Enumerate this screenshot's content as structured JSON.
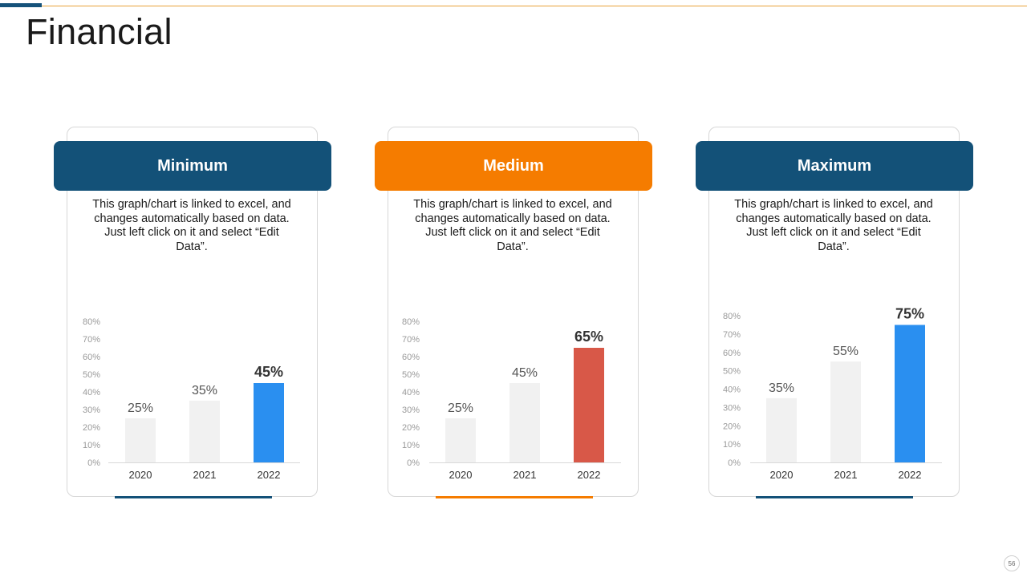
{
  "title": "Financial",
  "page_number": "56",
  "colors": {
    "dark_blue": "#135178",
    "orange": "#f57c00",
    "bright_blue": "#2a8ff0",
    "red": "#d85848",
    "gray_bar": "#f1f1f1"
  },
  "cards": [
    {
      "header": "Minimum",
      "header_color": "#135178",
      "description": "This graph/chart is linked to excel, and changes automatically based on data. Just left click on it and select “Edit Data”.",
      "underline_color": "#135178"
    },
    {
      "header": "Medium",
      "header_color": "#f57c00",
      "description": "This graph/chart is linked to excel, and changes automatically based on data. Just left click on it and select “Edit Data”.",
      "underline_color": "#f57c00"
    },
    {
      "header": "Maximum",
      "header_color": "#135178",
      "description": "This graph/chart is linked to excel, and changes automatically based on data. Just left click on it and select “Edit Data”.",
      "underline_color": "#135178"
    }
  ],
  "chart_data": [
    {
      "type": "bar",
      "categories": [
        "2020",
        "2021",
        "2022"
      ],
      "values": [
        25,
        35,
        45
      ],
      "value_labels": [
        "25%",
        "35%",
        "45%"
      ],
      "yticks": [
        "0%",
        "10%",
        "20%",
        "30%",
        "40%",
        "50%",
        "60%",
        "70%",
        "80%"
      ],
      "ylim": [
        0,
        80
      ],
      "highlight_color": "#2a8ff0",
      "grid": false
    },
    {
      "type": "bar",
      "categories": [
        "2020",
        "2021",
        "2022"
      ],
      "values": [
        25,
        45,
        65
      ],
      "value_labels": [
        "25%",
        "45%",
        "65%"
      ],
      "yticks": [
        "0%",
        "10%",
        "20%",
        "30%",
        "40%",
        "50%",
        "60%",
        "70%",
        "80%"
      ],
      "ylim": [
        0,
        80
      ],
      "highlight_color": "#d85848",
      "grid": false
    },
    {
      "type": "bar",
      "categories": [
        "2020",
        "2021",
        "2022"
      ],
      "values": [
        35,
        55,
        75
      ],
      "value_labels": [
        "35%",
        "55%",
        "75%"
      ],
      "yticks": [
        "0%",
        "10%",
        "20%",
        "30%",
        "40%",
        "50%",
        "60%",
        "70%",
        "80%"
      ],
      "ylim": [
        0,
        80
      ],
      "highlight_color": "#2a8ff0",
      "grid": false
    }
  ]
}
